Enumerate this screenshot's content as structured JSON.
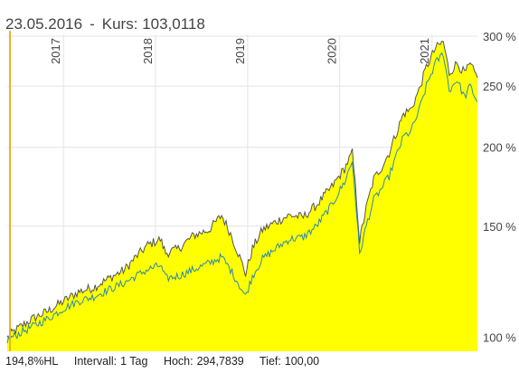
{
  "header": {
    "date": "23.05.2016",
    "separator": "-",
    "price_label": "Kurs:",
    "price_value": "103,0118"
  },
  "footer": {
    "period_change": "194,8%HL",
    "interval_label": "Intervall:",
    "interval_value": "1 Tag",
    "high_label": "Hoch:",
    "high_value": "294,7839",
    "low_label": "Tief:",
    "low_value": "100,00"
  },
  "colors": {
    "area_fill": "#ffff00",
    "primary_line": "#555555",
    "compare_line": "#2a8ca8",
    "grid": "#e4e4e4",
    "cursor": "#f0b020"
  },
  "chart_data": {
    "type": "area",
    "x_axis": {
      "type": "date",
      "range": [
        "2016-05-23",
        "2021-06-30"
      ],
      "tick_labels": [
        {
          "label": "2017",
          "date": "2017-01-01"
        },
        {
          "label": "2018",
          "date": "2018-01-01"
        },
        {
          "label": "2019",
          "date": "2019-01-01"
        },
        {
          "label": "2020",
          "date": "2020-01-01"
        },
        {
          "label": "2021",
          "date": "2021-01-01"
        }
      ]
    },
    "y_axis": {
      "position": "right",
      "scale": "log",
      "range": [
        95,
        302
      ],
      "ticks": [
        {
          "value": 100,
          "label": "100 %"
        },
        {
          "value": 150,
          "label": "150 %"
        },
        {
          "value": 200,
          "label": "200 %"
        },
        {
          "value": 250,
          "label": "250 %"
        },
        {
          "value": 300,
          "label": "300 %"
        }
      ]
    },
    "grid": true,
    "cursor_date": "2016-05-23",
    "series": [
      {
        "style": "area",
        "points": [
          [
            "2016-05-23",
            100
          ],
          [
            "2016-07-01",
            103
          ],
          [
            "2016-09-01",
            107
          ],
          [
            "2016-11-01",
            110
          ],
          [
            "2017-01-01",
            114
          ],
          [
            "2017-03-01",
            118
          ],
          [
            "2017-05-01",
            120
          ],
          [
            "2017-07-01",
            124
          ],
          [
            "2017-09-01",
            128
          ],
          [
            "2017-10-15",
            134
          ],
          [
            "2017-12-01",
            140
          ],
          [
            "2018-01-20",
            143
          ],
          [
            "2018-02-10",
            136
          ],
          [
            "2018-04-01",
            138
          ],
          [
            "2018-06-01",
            145
          ],
          [
            "2018-08-01",
            148
          ],
          [
            "2018-09-20",
            156
          ],
          [
            "2018-10-25",
            146
          ],
          [
            "2018-12-24",
            126
          ],
          [
            "2019-01-20",
            138
          ],
          [
            "2019-03-01",
            148
          ],
          [
            "2019-05-01",
            153
          ],
          [
            "2019-06-15",
            156
          ],
          [
            "2019-08-10",
            155
          ],
          [
            "2019-10-01",
            162
          ],
          [
            "2019-12-01",
            173
          ],
          [
            "2020-01-20",
            185
          ],
          [
            "2020-02-20",
            196
          ],
          [
            "2020-03-20",
            142
          ],
          [
            "2020-04-15",
            160
          ],
          [
            "2020-05-15",
            178
          ],
          [
            "2020-06-15",
            186
          ],
          [
            "2020-07-15",
            196
          ],
          [
            "2020-08-15",
            212
          ],
          [
            "2020-09-10",
            226
          ],
          [
            "2020-10-10",
            230
          ],
          [
            "2020-11-10",
            246
          ],
          [
            "2020-12-10",
            268
          ],
          [
            "2021-01-15",
            287
          ],
          [
            "2021-02-15",
            294
          ],
          [
            "2021-03-10",
            262
          ],
          [
            "2021-04-10",
            272
          ],
          [
            "2021-05-10",
            262
          ],
          [
            "2021-06-01",
            270
          ],
          [
            "2021-06-30",
            258
          ]
        ]
      },
      {
        "style": "line",
        "points": [
          [
            "2016-05-23",
            99
          ],
          [
            "2016-07-01",
            101
          ],
          [
            "2016-09-01",
            104
          ],
          [
            "2016-11-01",
            107
          ],
          [
            "2017-01-01",
            111
          ],
          [
            "2017-03-01",
            114
          ],
          [
            "2017-05-01",
            116
          ],
          [
            "2017-07-01",
            119
          ],
          [
            "2017-09-01",
            122
          ],
          [
            "2017-10-15",
            125
          ],
          [
            "2017-12-01",
            128
          ],
          [
            "2018-01-20",
            130
          ],
          [
            "2018-02-10",
            124
          ],
          [
            "2018-04-01",
            125
          ],
          [
            "2018-06-01",
            128
          ],
          [
            "2018-08-01",
            131
          ],
          [
            "2018-09-20",
            134
          ],
          [
            "2018-10-25",
            128
          ],
          [
            "2018-12-24",
            116
          ],
          [
            "2019-01-20",
            125
          ],
          [
            "2019-03-01",
            133
          ],
          [
            "2019-05-01",
            139
          ],
          [
            "2019-06-15",
            143
          ],
          [
            "2019-08-10",
            144
          ],
          [
            "2019-10-01",
            150
          ],
          [
            "2019-12-01",
            162
          ],
          [
            "2020-01-20",
            176
          ],
          [
            "2020-02-20",
            190
          ],
          [
            "2020-03-20",
            135
          ],
          [
            "2020-04-15",
            150
          ],
          [
            "2020-05-15",
            165
          ],
          [
            "2020-06-15",
            172
          ],
          [
            "2020-07-15",
            180
          ],
          [
            "2020-08-15",
            195
          ],
          [
            "2020-09-10",
            208
          ],
          [
            "2020-10-10",
            212
          ],
          [
            "2020-11-10",
            228
          ],
          [
            "2020-12-10",
            250
          ],
          [
            "2021-01-15",
            272
          ],
          [
            "2021-02-15",
            282
          ],
          [
            "2021-03-10",
            246
          ],
          [
            "2021-04-10",
            256
          ],
          [
            "2021-05-10",
            240
          ],
          [
            "2021-06-01",
            250
          ],
          [
            "2021-06-30",
            236
          ]
        ]
      }
    ]
  }
}
